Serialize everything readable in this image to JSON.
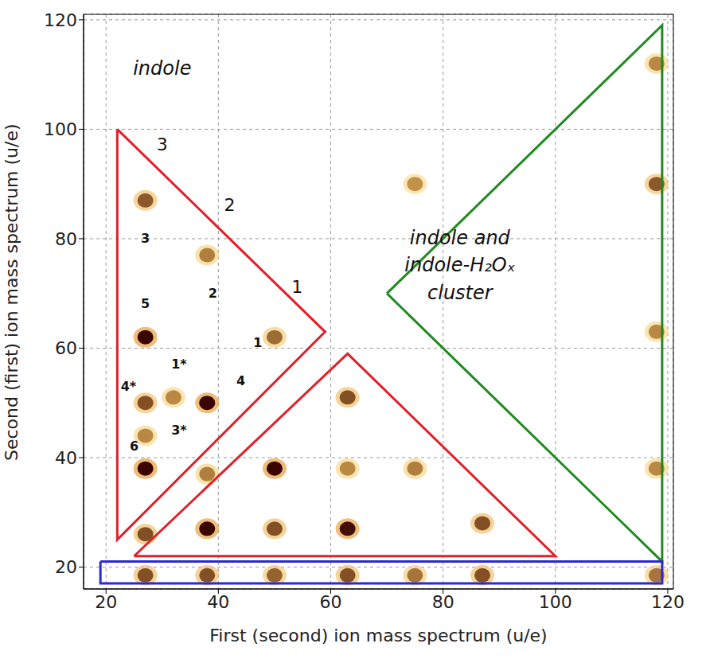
{
  "chart_data": {
    "type": "scatter",
    "x_label": "First (second) ion mass spectrum (u/e)",
    "y_label": "Second (first) ion mass spectrum (u/e)",
    "xlim": [
      16,
      121
    ],
    "ylim": [
      16,
      121
    ],
    "xticks": [
      20,
      40,
      60,
      80,
      100,
      120
    ],
    "yticks": [
      20,
      40,
      60,
      80,
      100,
      120
    ],
    "grid": true,
    "peaks": [
      {
        "x": 27,
        "y": 87,
        "intensity": 0.55
      },
      {
        "x": 27,
        "y": 62,
        "intensity": 1
      },
      {
        "x": 27,
        "y": 50,
        "intensity": 0.6
      },
      {
        "x": 27,
        "y": 38,
        "intensity": 1
      },
      {
        "x": 38,
        "y": 50,
        "intensity": 1
      },
      {
        "x": 38,
        "y": 77,
        "intensity": 0.35
      },
      {
        "x": 50,
        "y": 62,
        "intensity": 0.45
      },
      {
        "x": 32,
        "y": 51,
        "intensity": 0.3
      },
      {
        "x": 27,
        "y": 44,
        "intensity": 0.3
      },
      {
        "x": 38,
        "y": 37,
        "intensity": 0.35
      },
      {
        "x": 27,
        "y": 26,
        "intensity": 0.6
      },
      {
        "x": 38,
        "y": 27,
        "intensity": 1
      },
      {
        "x": 50,
        "y": 38,
        "intensity": 1
      },
      {
        "x": 50,
        "y": 27,
        "intensity": 0.6
      },
      {
        "x": 63,
        "y": 27,
        "intensity": 0.95
      },
      {
        "x": 63,
        "y": 51,
        "intensity": 0.6
      },
      {
        "x": 63,
        "y": 38,
        "intensity": 0.3
      },
      {
        "x": 75,
        "y": 38,
        "intensity": 0.35
      },
      {
        "x": 87,
        "y": 28,
        "intensity": 0.6
      },
      {
        "x": 27,
        "y": 18.5,
        "intensity": 0.6
      },
      {
        "x": 38,
        "y": 18.5,
        "intensity": 0.6
      },
      {
        "x": 50,
        "y": 18.5,
        "intensity": 0.5
      },
      {
        "x": 63,
        "y": 18.5,
        "intensity": 0.6
      },
      {
        "x": 75,
        "y": 18.5,
        "intensity": 0.4
      },
      {
        "x": 87,
        "y": 18.5,
        "intensity": 0.6
      },
      {
        "x": 118,
        "y": 18.5,
        "intensity": 0.4
      },
      {
        "x": 118,
        "y": 90,
        "intensity": 0.55
      },
      {
        "x": 118,
        "y": 112,
        "intensity": 0.3
      },
      {
        "x": 118,
        "y": 63,
        "intensity": 0.3
      },
      {
        "x": 118,
        "y": 38,
        "intensity": 0.3
      },
      {
        "x": 75,
        "y": 90,
        "intensity": 0.25
      }
    ],
    "regions": [
      {
        "color": "#e0202a",
        "points": [
          [
            22,
            100
          ],
          [
            22,
            25
          ],
          [
            59,
            63
          ]
        ]
      },
      {
        "color": "#e0202a",
        "points": [
          [
            25,
            22
          ],
          [
            63,
            59
          ],
          [
            100,
            22
          ]
        ]
      },
      {
        "color": "#1f8a1f",
        "points": [
          [
            70,
            70
          ],
          [
            119,
            119
          ],
          [
            119,
            21
          ]
        ]
      },
      {
        "color": "#2a2ad0",
        "points": [
          [
            19,
            21
          ],
          [
            119,
            21
          ],
          [
            119,
            17
          ],
          [
            19,
            17
          ]
        ]
      }
    ],
    "region_labels": [
      {
        "text": "indole",
        "x": 30,
        "y": 111
      },
      {
        "text": "indole and indole-H₂Oₓ cluster",
        "x": 83,
        "y": 75
      }
    ],
    "edge_labels": [
      {
        "text": "3",
        "x": 30,
        "y": 97
      },
      {
        "text": "2",
        "x": 42,
        "y": 86
      },
      {
        "text": "1",
        "x": 54,
        "y": 71
      }
    ],
    "peak_labels": [
      {
        "text": "3",
        "x": 27,
        "y": 80
      },
      {
        "text": "5",
        "x": 27,
        "y": 68
      },
      {
        "text": "2",
        "x": 39,
        "y": 70
      },
      {
        "text": "1",
        "x": 47,
        "y": 61
      },
      {
        "text": "1*",
        "x": 33,
        "y": 57
      },
      {
        "text": "4",
        "x": 44,
        "y": 54
      },
      {
        "text": "4*",
        "x": 24,
        "y": 53
      },
      {
        "text": "3*",
        "x": 33,
        "y": 45
      },
      {
        "text": "6",
        "x": 25,
        "y": 42
      }
    ]
  }
}
